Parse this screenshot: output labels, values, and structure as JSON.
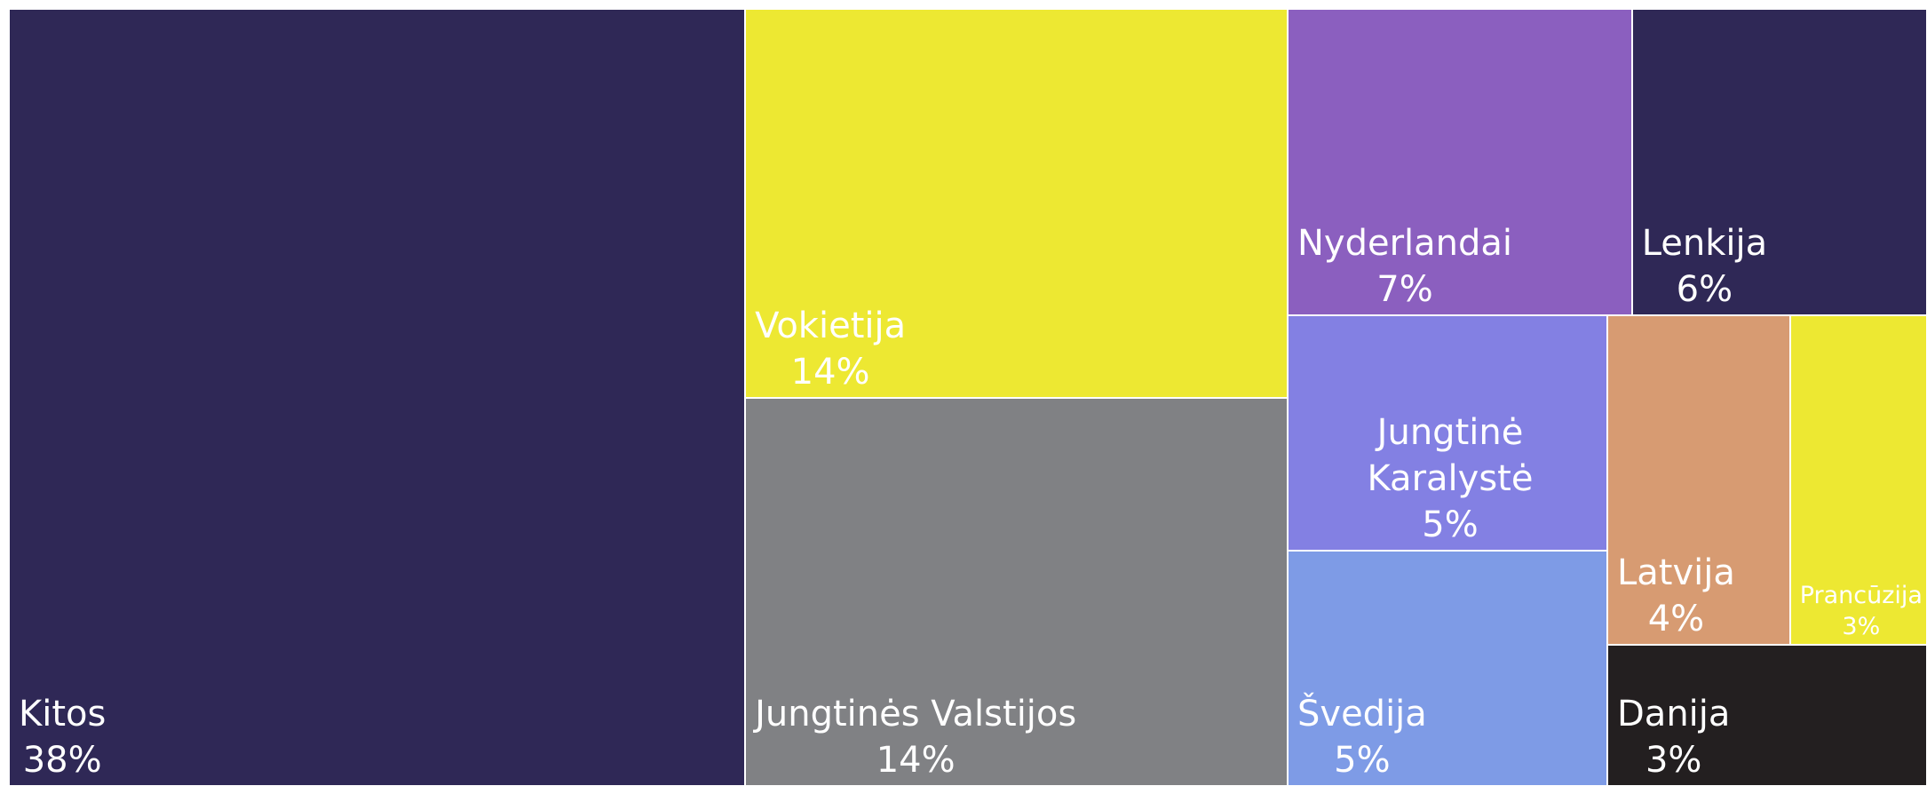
{
  "chart_data": {
    "type": "treemap",
    "labels": [
      "Kitos",
      "Vokietija",
      "Jungtinės Valstijos",
      "Nyderlandai",
      "Lenkija",
      "Jungtinė Karalystė",
      "Švedija",
      "Latvija",
      "Prancūzija",
      "Danija"
    ],
    "values": [
      38,
      14,
      14,
      7,
      6,
      5,
      5,
      4,
      3,
      3
    ],
    "value_labels": [
      "38%",
      "14%",
      "14%",
      "7%",
      "6%",
      "5%",
      "5%",
      "4%",
      "3%",
      "3%"
    ],
    "colors": [
      "#2f2856",
      "#ede832",
      "#808184",
      "#8b5fbf",
      "#2f2856",
      "#8380e3",
      "#7e9be6",
      "#d79b72",
      "#ede832",
      "#231f20"
    ]
  }
}
